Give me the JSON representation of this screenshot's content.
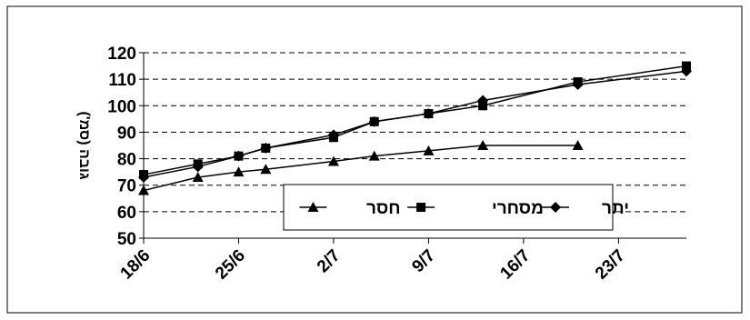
{
  "chart_data": {
    "type": "line",
    "title": "",
    "xlabel": "",
    "ylabel": "גובה  (סמ')",
    "ylim": [
      50,
      120
    ],
    "yticks": [
      "50",
      "60",
      "70",
      "80",
      "90",
      "100",
      "110",
      "120"
    ],
    "xlim": [
      "2024-06-18",
      "2024-07-28"
    ],
    "xticks": [
      {
        "date": "2024-06-18",
        "label": "18/6"
      },
      {
        "date": "2024-06-25",
        "label": "25/6"
      },
      {
        "date": "2024-07-02",
        "label": "2/7"
      },
      {
        "date": "2024-07-09",
        "label": "9/7"
      },
      {
        "date": "2024-07-16",
        "label": "16/7"
      },
      {
        "date": "2024-07-23",
        "label": "23/7"
      }
    ],
    "grid": "horizontal dashed",
    "legend_position": "bottom-center inside plot",
    "series": [
      {
        "name": "יתר",
        "marker": "diamond",
        "color": "#000000",
        "points": [
          {
            "x": "2024-06-18",
            "y": 73
          },
          {
            "x": "2024-06-22",
            "y": 77
          },
          {
            "x": "2024-06-25",
            "y": 81
          },
          {
            "x": "2024-06-27",
            "y": 84
          },
          {
            "x": "2024-07-02",
            "y": 89
          },
          {
            "x": "2024-07-05",
            "y": 94
          },
          {
            "x": "2024-07-09",
            "y": 97
          },
          {
            "x": "2024-07-13",
            "y": 102
          },
          {
            "x": "2024-07-20",
            "y": 108
          },
          {
            "x": "2024-07-28",
            "y": 113
          }
        ]
      },
      {
        "name": "מסחרי",
        "marker": "square",
        "color": "#000000",
        "points": [
          {
            "x": "2024-06-18",
            "y": 74
          },
          {
            "x": "2024-06-22",
            "y": 78
          },
          {
            "x": "2024-06-25",
            "y": 81
          },
          {
            "x": "2024-06-27",
            "y": 84
          },
          {
            "x": "2024-07-02",
            "y": 88
          },
          {
            "x": "2024-07-05",
            "y": 94
          },
          {
            "x": "2024-07-09",
            "y": 97
          },
          {
            "x": "2024-07-13",
            "y": 100
          },
          {
            "x": "2024-07-20",
            "y": 109
          },
          {
            "x": "2024-07-28",
            "y": 115
          }
        ]
      },
      {
        "name": "חסר",
        "marker": "triangle",
        "color": "#000000",
        "points": [
          {
            "x": "2024-06-18",
            "y": 68
          },
          {
            "x": "2024-06-22",
            "y": 73
          },
          {
            "x": "2024-06-25",
            "y": 75
          },
          {
            "x": "2024-06-27",
            "y": 76
          },
          {
            "x": "2024-07-02",
            "y": 79
          },
          {
            "x": "2024-07-05",
            "y": 81
          },
          {
            "x": "2024-07-09",
            "y": 83
          },
          {
            "x": "2024-07-13",
            "y": 85
          },
          {
            "x": "2024-07-20",
            "y": 85
          }
        ]
      }
    ]
  }
}
